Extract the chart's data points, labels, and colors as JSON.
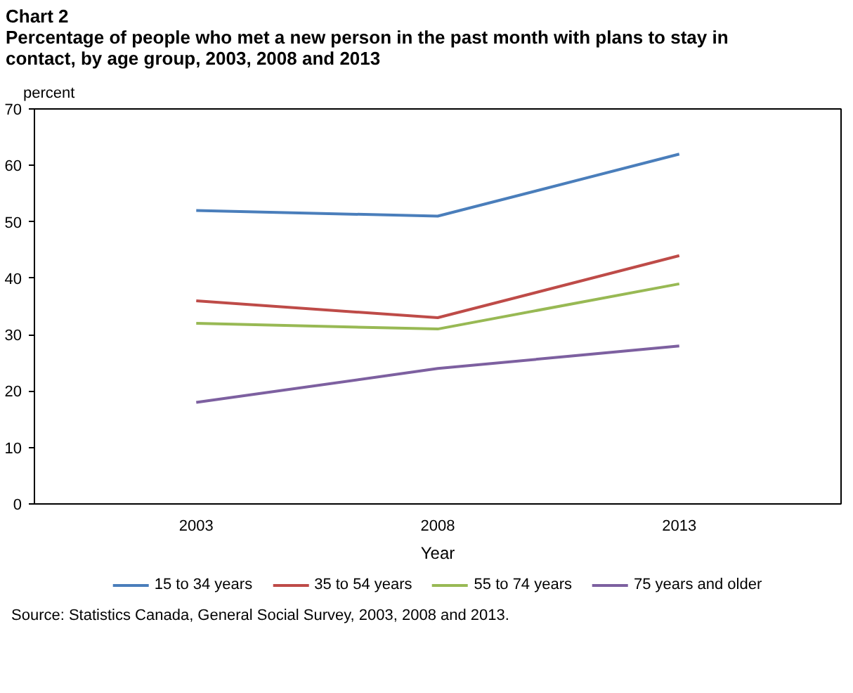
{
  "chart_data": {
    "type": "line",
    "title": "Chart 2",
    "subtitle": "Percentage of people who met a new person in the past month with plans to stay in contact, by age group, 2003, 2008 and 2013",
    "xlabel": "Year",
    "ylabel": "percent",
    "categories": [
      "2003",
      "2008",
      "2013"
    ],
    "series": [
      {
        "name": "15 to 34 years",
        "color": "#4a7ebb",
        "values": [
          52,
          51,
          62
        ]
      },
      {
        "name": "35 to 54 years",
        "color": "#be4b48",
        "values": [
          36,
          33,
          44
        ]
      },
      {
        "name": "55 to 74 years",
        "color": "#98b954",
        "values": [
          32,
          31,
          39
        ]
      },
      {
        "name": "75 years and older",
        "color": "#7d60a0",
        "values": [
          18,
          24,
          28
        ]
      }
    ],
    "ylim": [
      0,
      70
    ],
    "yticks": [
      0,
      10,
      20,
      30,
      40,
      50,
      60,
      70
    ],
    "grid": false,
    "legend": "bottom",
    "marker": "none",
    "line_style": "solid",
    "annotations": [
      "Source: Statistics Canada, General Social Survey, 2003, 2008 and 2013."
    ]
  }
}
